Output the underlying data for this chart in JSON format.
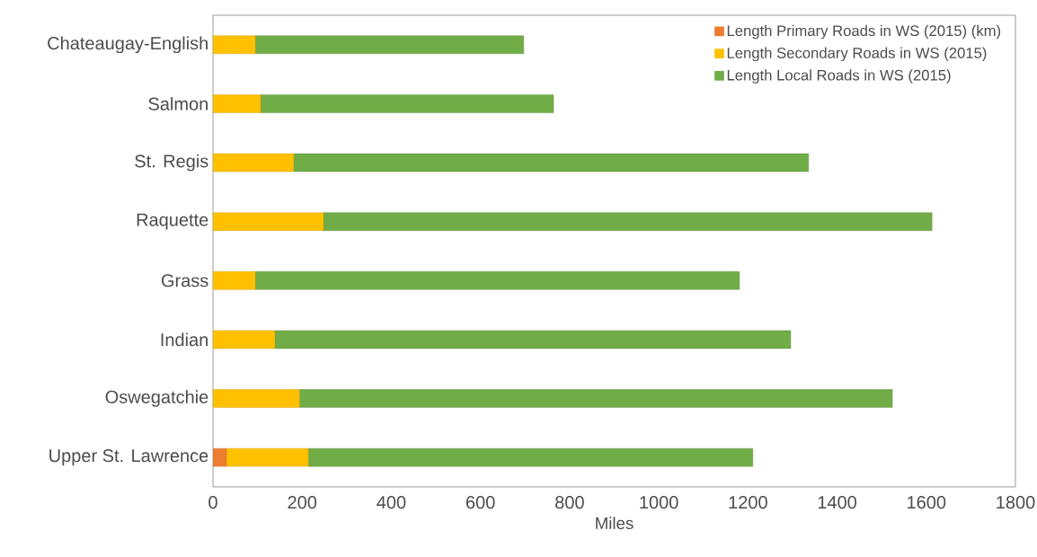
{
  "chart_data": {
    "type": "bar",
    "orientation": "horizontal",
    "stacked": true,
    "xlabel": "Miles",
    "categories": [
      "Chateaugay-English",
      "Salmon",
      "St. Regis",
      "Raquette",
      "Grass",
      "Indian",
      "Oswegatchie",
      "Upper St. Lawrence"
    ],
    "series": [
      {
        "name": "Length Primary Roads in WS (2015) (km)",
        "color": "#ed7d31",
        "values": [
          0,
          0,
          0,
          0,
          0,
          0,
          0,
          30
        ]
      },
      {
        "name": "Length Secondary Roads in WS (2015)",
        "color": "#ffc000",
        "values": [
          95,
          107,
          181,
          248,
          95,
          139,
          194,
          184
        ]
      },
      {
        "name": "Length Local Roads in WS (2015)",
        "color": "#70ad47",
        "values": [
          602,
          657,
          1155,
          1365,
          1086,
          1157,
          1330,
          997
        ]
      }
    ],
    "xlim": [
      0,
      1800
    ],
    "xticks": [
      0,
      200,
      400,
      600,
      800,
      1000,
      1200,
      1400,
      1600,
      1800
    ],
    "grid": false,
    "legend": "top right"
  }
}
